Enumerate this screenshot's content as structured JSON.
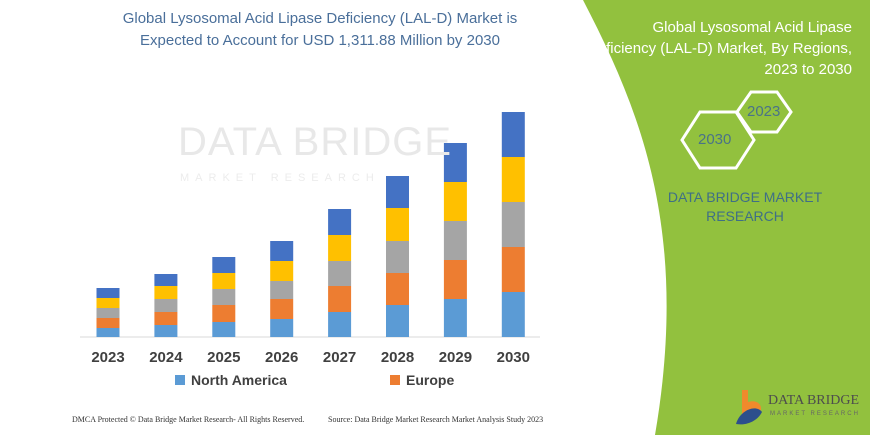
{
  "header": {
    "title_line1": "Global Lysosomal Acid Lipase Deficiency (LAL-D) Market is",
    "title_line2": "Expected to Account for USD 1,311.88 Million by 2030"
  },
  "side_panel": {
    "title_line1": "Global Lysosomal Acid Lipase",
    "title_line2": "Deficiency (LAL-D) Market, By Regions,",
    "title_line3": "2023 to 2030",
    "hex_start": "2023",
    "hex_end": "2030",
    "brand_line1": "DATA BRIDGE MARKET",
    "brand_line2": "RESEARCH",
    "color": "#92c13e"
  },
  "watermark": {
    "main": "DATA BRIDGE",
    "sub": "MARKET RESEARCH"
  },
  "footer": {
    "copyright": "DMCA Protected © Data Bridge Market Research-  All Rights Reserved.",
    "source": "Source: Data Bridge Market Research  Market Analysis Study 2023"
  },
  "logo": {
    "name": "DATA BRIDGE",
    "tagline": "MARKET RESEARCH"
  },
  "chart_data": {
    "type": "bar",
    "stacked": true,
    "categories": [
      "2023",
      "2024",
      "2025",
      "2026",
      "2027",
      "2028",
      "2029",
      "2030"
    ],
    "series": [
      {
        "name": "North America",
        "color": "#5b9bd5",
        "values": [
          9,
          12,
          15,
          18,
          25,
          32,
          38,
          45
        ]
      },
      {
        "name": "Europe",
        "color": "#ed7d31",
        "values": [
          10,
          13,
          17,
          20,
          26,
          32,
          39,
          45
        ]
      },
      {
        "color": "#a5a5a5",
        "values": [
          10,
          13,
          16,
          18,
          25,
          32,
          39,
          45
        ]
      },
      {
        "color": "#ffc000",
        "values": [
          10,
          13,
          16,
          20,
          26,
          33,
          39,
          45
        ]
      },
      {
        "color": "#4472c4",
        "values": [
          10,
          12,
          16,
          20,
          26,
          32,
          39,
          45
        ]
      }
    ],
    "ylim": [
      0,
      230
    ],
    "axis_values_shown": false,
    "grid": false,
    "legend": "bottom"
  }
}
